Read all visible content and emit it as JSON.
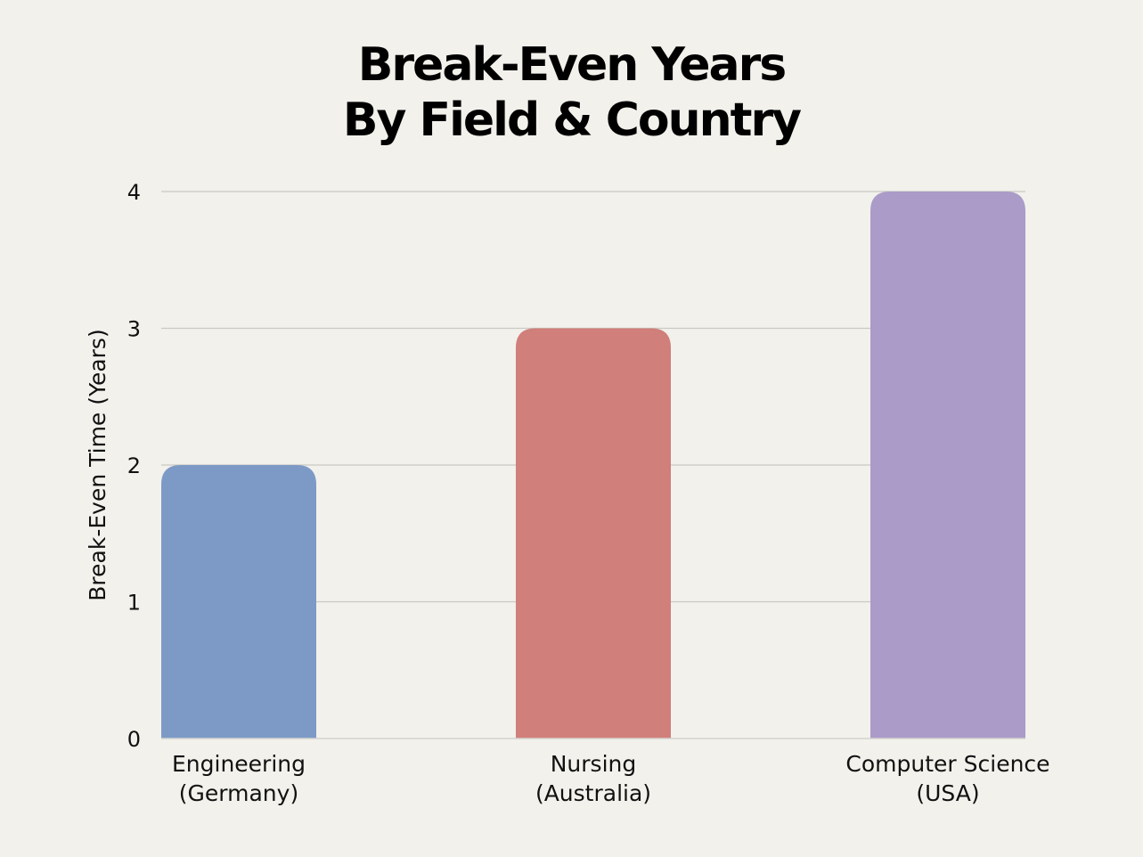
{
  "chart_data": {
    "type": "bar",
    "title": [
      "Break-Even Years",
      "By Field & Country"
    ],
    "xlabel": "",
    "ylabel": "Break-Even Time (Years)",
    "categories": [
      [
        "Engineering",
        "(Germany)"
      ],
      [
        "Nursing",
        "(Australia)"
      ],
      [
        "Computer Science",
        "(USA)"
      ]
    ],
    "values": [
      2,
      3,
      4
    ],
    "colors": [
      "#7d9ac6",
      "#d07f7a",
      "#aa9bc8"
    ],
    "ylim": [
      0,
      4
    ],
    "yticks": [
      0,
      1,
      2,
      3,
      4
    ],
    "grid": true,
    "legend": "none"
  }
}
